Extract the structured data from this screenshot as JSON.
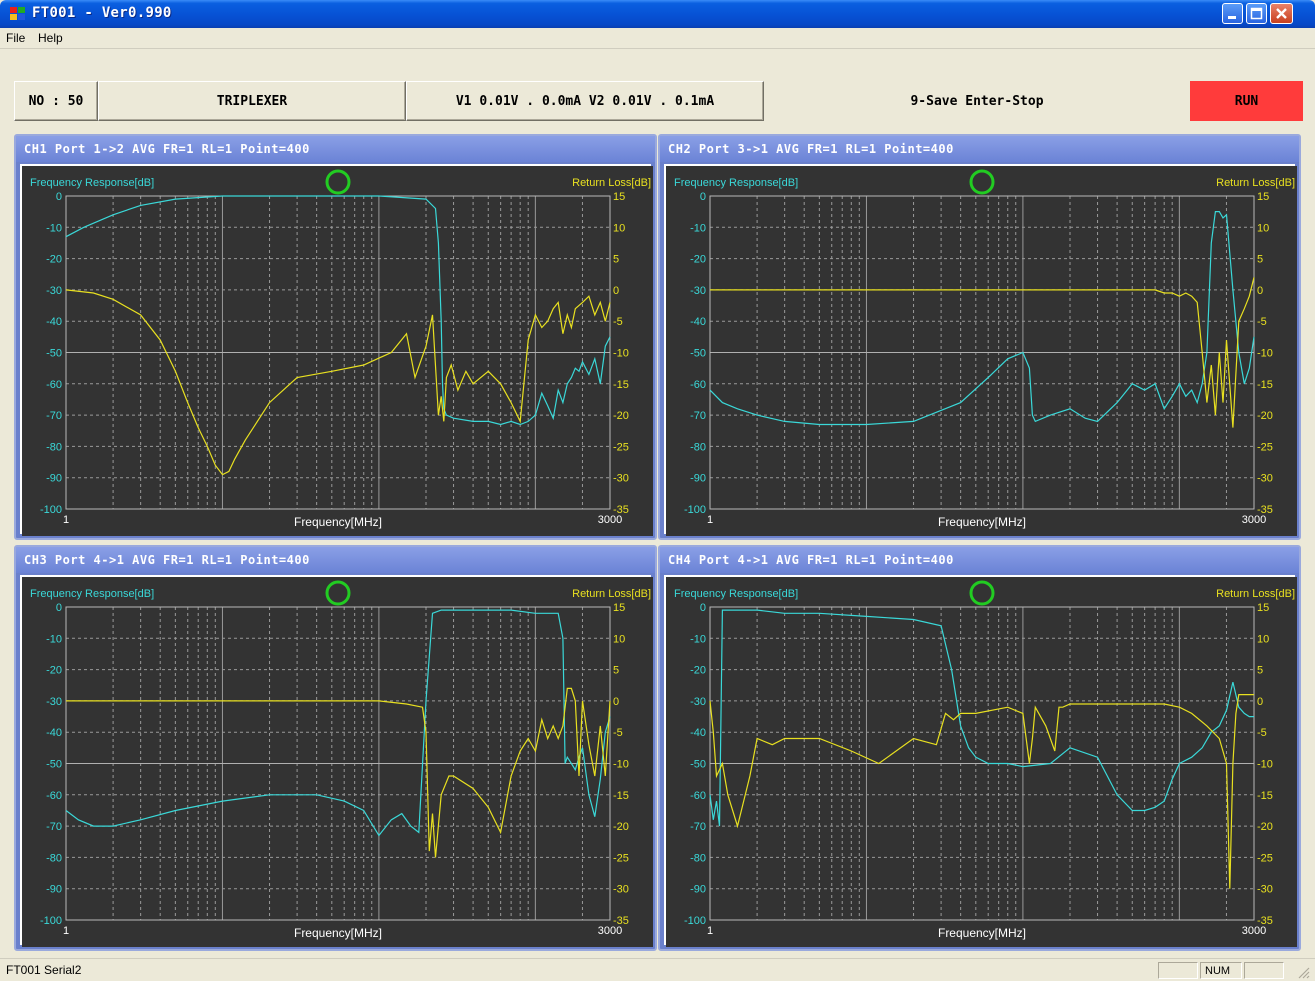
{
  "window": {
    "title": "FT001 - Ver0.990"
  },
  "menu": {
    "items": [
      "File",
      "Help"
    ]
  },
  "toolbar": {
    "no_label": "NO : 50",
    "mode_label": "TRIPLEXER",
    "voltage_label": "V1 0.01V . 0.0mA V2 0.01V . 0.1mA",
    "status_label": "9-Save Enter-Stop",
    "run_label": "RUN"
  },
  "colors": {
    "fr_trace": "#3ad8d8",
    "rl_trace": "#e8e020",
    "plot_bg": "#333333",
    "marker": "#22cc22",
    "run_bg": "#ff3b3b"
  },
  "statusbar": {
    "left_text": "FT001 Serial2",
    "num": "NUM"
  },
  "panels": [
    {
      "header": "CH1 Port 1->2  AVG FR=1 RL=1 Point=400"
    },
    {
      "header": "CH2 Port 3->1  AVG FR=1 RL=1 Point=400"
    },
    {
      "header": "CH3 Port 4->1  AVG FR=1 RL=1 Point=400"
    },
    {
      "header": "CH4 Port 4->1  AVG FR=1 RL=1 Point=400"
    }
  ],
  "chart_data": [
    {
      "type": "line",
      "title": "CH1 Port 1->2  AVG FR=1 RL=1 Point=400",
      "xlabel": "Frequency[MHz]",
      "x_scale": "log",
      "xlim": [
        1,
        3000
      ],
      "x_tick_labels": [
        "1",
        "3000"
      ],
      "ylabel_left": "Frequency Response[dB]",
      "ylim_left": [
        -100,
        0
      ],
      "y_ticks_left": [
        "0",
        "-10",
        "-20",
        "-30",
        "-40",
        "-50",
        "-60",
        "-70",
        "-80",
        "-90",
        "-100"
      ],
      "ylabel_right": "Return Loss[dB]",
      "ylim_right": [
        -35,
        15
      ],
      "y_ticks_right": [
        "15",
        "10",
        "5",
        "0",
        "-5",
        "-10",
        "-15",
        "-20",
        "-25",
        "-30",
        "-35"
      ],
      "grid": true,
      "series": [
        {
          "axis": "left",
          "color": "#3ad8d8",
          "x": [
            1,
            1.3,
            2,
            3,
            5,
            10,
            30,
            100,
            200,
            230,
            240,
            250,
            255,
            260,
            270,
            300,
            400,
            500,
            600,
            700,
            800,
            900,
            1000,
            1100,
            1200,
            1300,
            1400,
            1500,
            1600,
            1700,
            1800,
            1900,
            2000,
            2200,
            2400,
            2600,
            2800,
            3000
          ],
          "y": [
            -13,
            -10,
            -6,
            -3,
            -1,
            0,
            0,
            0,
            -1,
            -4,
            -15,
            -40,
            -60,
            -68,
            -70,
            -71,
            -72,
            -72,
            -73,
            -72,
            -73,
            -72,
            -70,
            -63,
            -67,
            -71,
            -62,
            -66,
            -60,
            -58,
            -55,
            -56,
            -53,
            -57,
            -52,
            -60,
            -48,
            -45
          ]
        },
        {
          "axis": "right",
          "color": "#e8e020",
          "x": [
            1,
            1.5,
            2,
            3,
            4,
            5,
            6,
            7,
            8,
            9,
            10,
            11,
            12,
            14,
            20,
            30,
            50,
            80,
            120,
            150,
            170,
            200,
            220,
            240,
            250,
            260,
            270,
            290,
            320,
            360,
            400,
            500,
            600,
            700,
            800,
            900,
            1000,
            1100,
            1200,
            1300,
            1400,
            1500,
            1600,
            1700,
            1800,
            2000,
            2200,
            2400,
            2600,
            2800,
            3000
          ],
          "y": [
            0,
            -0.5,
            -1.5,
            -4,
            -8,
            -13,
            -18,
            -22,
            -25,
            -28,
            -29.5,
            -29,
            -27,
            -24,
            -18,
            -14,
            -13,
            -12,
            -10,
            -7,
            -14,
            -9,
            -4,
            -20,
            -17,
            -21,
            -14,
            -12,
            -16,
            -13,
            -15,
            -13,
            -15,
            -18,
            -21,
            -8,
            -4,
            -6,
            -5,
            -3,
            -2,
            -7,
            -4,
            -6,
            -3,
            -2,
            -1,
            -4,
            -2,
            -5,
            -2
          ]
        }
      ]
    },
    {
      "type": "line",
      "title": "CH2 Port 3->1  AVG FR=1 RL=1 Point=400",
      "xlabel": "Frequency[MHz]",
      "x_scale": "log",
      "xlim": [
        1,
        3000
      ],
      "x_tick_labels": [
        "1",
        "3000"
      ],
      "ylabel_left": "Frequency Response[dB]",
      "ylim_left": [
        -100,
        0
      ],
      "y_ticks_left": [
        "0",
        "-10",
        "-20",
        "-30",
        "-40",
        "-50",
        "-60",
        "-70",
        "-80",
        "-90",
        "-100"
      ],
      "ylabel_right": "Return Loss[dB]",
      "ylim_right": [
        -35,
        15
      ],
      "y_ticks_right": [
        "15",
        "10",
        "5",
        "0",
        "-5",
        "-10",
        "-15",
        "-20",
        "-25",
        "-30",
        "-35"
      ],
      "grid": true,
      "series": [
        {
          "axis": "left",
          "color": "#3ad8d8",
          "x": [
            1,
            1.2,
            1.5,
            2,
            3,
            5,
            10,
            20,
            40,
            60,
            80,
            100,
            110,
            115,
            120,
            150,
            200,
            250,
            300,
            400,
            500,
            600,
            700,
            800,
            900,
            1000,
            1100,
            1200,
            1300,
            1400,
            1500,
            1600,
            1700,
            1800,
            1900,
            2000,
            2200,
            2400,
            2600,
            2800,
            3000
          ],
          "y": [
            -62,
            -66,
            -68,
            -70,
            -72,
            -73,
            -73,
            -72,
            -66,
            -58,
            -52,
            -50,
            -55,
            -70,
            -72,
            -70,
            -68,
            -71,
            -72,
            -66,
            -60,
            -62,
            -60,
            -68,
            -64,
            -60,
            -64,
            -62,
            -66,
            -60,
            -50,
            -15,
            -5,
            -5,
            -7,
            -6,
            -30,
            -50,
            -60,
            -55,
            -45
          ]
        },
        {
          "axis": "right",
          "color": "#e8e020",
          "x": [
            1,
            5,
            10,
            50,
            100,
            200,
            300,
            500,
            700,
            800,
            900,
            1000,
            1100,
            1200,
            1300,
            1400,
            1500,
            1600,
            1700,
            1800,
            1900,
            2000,
            2200,
            2400,
            2600,
            2800,
            3000
          ],
          "y": [
            0,
            0,
            0,
            0,
            0,
            0,
            0,
            0,
            0,
            -0.5,
            -0.5,
            -1,
            -0.5,
            -1,
            -2,
            -10,
            -18,
            -12,
            -20,
            -10,
            -18,
            -8,
            -22,
            -5,
            -3,
            -1,
            2
          ]
        }
      ]
    },
    {
      "type": "line",
      "title": "CH3 Port 4->1  AVG FR=1 RL=1 Point=400",
      "xlabel": "Frequency[MHz]",
      "x_scale": "log",
      "xlim": [
        1,
        3000
      ],
      "x_tick_labels": [
        "1",
        "3000"
      ],
      "ylabel_left": "Frequency Response[dB]",
      "ylim_left": [
        -100,
        0
      ],
      "y_ticks_left": [
        "0",
        "-10",
        "-20",
        "-30",
        "-40",
        "-50",
        "-60",
        "-70",
        "-80",
        "-90",
        "-100"
      ],
      "ylabel_right": "Return Loss[dB]",
      "ylim_right": [
        -35,
        15
      ],
      "y_ticks_right": [
        "15",
        "10",
        "5",
        "0",
        "-5",
        "-10",
        "-15",
        "-20",
        "-25",
        "-30",
        "-35"
      ],
      "grid": true,
      "series": [
        {
          "axis": "left",
          "color": "#3ad8d8",
          "x": [
            1,
            1.2,
            1.5,
            2,
            3,
            5,
            10,
            20,
            40,
            60,
            80,
            100,
            120,
            140,
            160,
            180,
            200,
            220,
            250,
            300,
            400,
            500,
            700,
            1000,
            1200,
            1400,
            1500,
            1550,
            1600,
            1700,
            1800,
            1900,
            2000,
            2200,
            2400,
            2600,
            2800,
            3000
          ],
          "y": [
            -65,
            -68,
            -70,
            -70,
            -68,
            -65,
            -62,
            -60,
            -60,
            -62,
            -65,
            -73,
            -68,
            -66,
            -70,
            -72,
            -30,
            -2,
            -1,
            -1,
            -1,
            -1,
            -1,
            -2,
            -2,
            -2,
            -10,
            -50,
            -48,
            -50,
            -52,
            -48,
            -45,
            -60,
            -67,
            -55,
            -40,
            -35
          ]
        },
        {
          "axis": "right",
          "color": "#e8e020",
          "x": [
            1,
            5,
            10,
            50,
            100,
            150,
            190,
            200,
            210,
            220,
            230,
            250,
            280,
            300,
            400,
            500,
            600,
            700,
            800,
            900,
            1000,
            1100,
            1200,
            1300,
            1400,
            1500,
            1600,
            1700,
            1800,
            1900,
            2000,
            2200,
            2400,
            2600,
            2800,
            3000
          ],
          "y": [
            0,
            0,
            0,
            0,
            0,
            -0.5,
            -1,
            -5,
            -24,
            -18,
            -25,
            -15,
            -12,
            -12,
            -14,
            -17,
            -21,
            -12,
            -8,
            -6,
            -8,
            -3,
            -6,
            -4,
            -6,
            -4,
            2,
            2,
            0,
            -12,
            0,
            -7,
            -12,
            -4,
            -12,
            0
          ]
        }
      ]
    },
    {
      "type": "line",
      "title": "CH4 Port 4->1  AVG FR=1 RL=1 Point=400",
      "xlabel": "Frequency[MHz]",
      "x_scale": "log",
      "xlim": [
        1,
        3000
      ],
      "x_tick_labels": [
        "1",
        "3000"
      ],
      "ylabel_left": "Frequency Response[dB]",
      "ylim_left": [
        -100,
        0
      ],
      "y_ticks_left": [
        "0",
        "-10",
        "-20",
        "-30",
        "-40",
        "-50",
        "-60",
        "-70",
        "-80",
        "-90",
        "-100"
      ],
      "ylabel_right": "Return Loss[dB]",
      "ylim_right": [
        -35,
        15
      ],
      "y_ticks_right": [
        "15",
        "10",
        "5",
        "0",
        "-5",
        "-10",
        "-15",
        "-20",
        "-25",
        "-30",
        "-35"
      ],
      "grid": true,
      "series": [
        {
          "axis": "left",
          "color": "#3ad8d8",
          "x": [
            1,
            1.05,
            1.1,
            1.15,
            1.2,
            1.3,
            1.5,
            2,
            3,
            5,
            10,
            20,
            30,
            35,
            40,
            45,
            50,
            60,
            80,
            100,
            150,
            200,
            300,
            400,
            500,
            600,
            700,
            800,
            900,
            1000,
            1200,
            1400,
            1600,
            1800,
            2000,
            2200,
            2400,
            2600,
            2800,
            3000
          ],
          "y": [
            -60,
            -68,
            -62,
            -70,
            -1,
            -1,
            -1,
            -1,
            -2,
            -2,
            -3,
            -4,
            -6,
            -20,
            -38,
            -45,
            -48,
            -50,
            -50,
            -51,
            -50,
            -45,
            -48,
            -60,
            -65,
            -65,
            -64,
            -62,
            -55,
            -50,
            -48,
            -45,
            -40,
            -38,
            -33,
            -24,
            -32,
            -34,
            -35,
            -35
          ]
        },
        {
          "axis": "right",
          "color": "#e8e020",
          "x": [
            1,
            1.05,
            1.1,
            1.2,
            1.3,
            1.5,
            1.8,
            2,
            2.5,
            3,
            5,
            8,
            12,
            20,
            28,
            32,
            36,
            40,
            50,
            80,
            100,
            110,
            115,
            120,
            140,
            160,
            170,
            180,
            200,
            300,
            500,
            800,
            1000,
            1200,
            1500,
            1800,
            2000,
            2100,
            2200,
            2300,
            2400,
            2600,
            2800,
            3000
          ],
          "y": [
            0,
            -5,
            -12,
            -10,
            -15,
            -20,
            -12,
            -6,
            -7,
            -6,
            -6,
            -8,
            -10,
            -6,
            -7,
            -2,
            -3,
            -2,
            -2,
            -1,
            -2,
            -10,
            -6,
            -1,
            -4,
            -8,
            -1,
            -1,
            -0.5,
            -0.5,
            -0.5,
            -0.5,
            -1,
            -2,
            -4,
            -6,
            -10,
            -30,
            -10,
            -2,
            1,
            1,
            1,
            1
          ]
        }
      ]
    }
  ]
}
